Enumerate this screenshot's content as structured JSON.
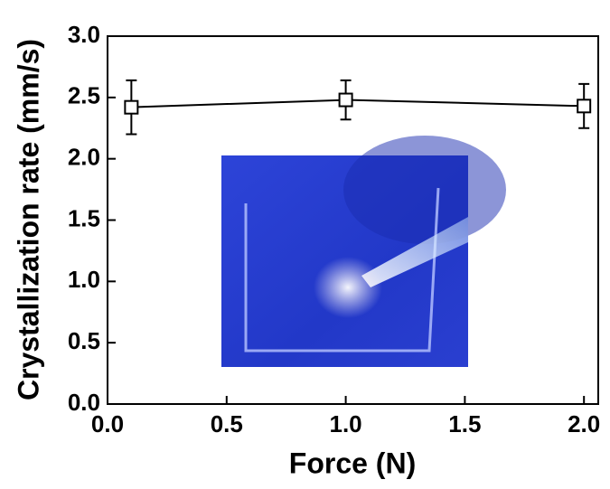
{
  "chart_data": {
    "type": "line",
    "x_label": "Force (N)",
    "y_label": "Crystallization rate (mm/s)",
    "x": [
      0.1,
      1.0,
      2.0
    ],
    "series": [
      {
        "color": "#000000",
        "values": [
          2.42,
          2.48,
          2.43
        ],
        "errors": [
          0.22,
          0.16,
          0.18
        ]
      }
    ],
    "xlim": [
      0,
      2.06
    ],
    "ylim": [
      0,
      3.0
    ],
    "xticks": [
      {
        "value": 0,
        "label": "0.0"
      },
      {
        "value": 0.5,
        "label": "0.5"
      },
      {
        "value": 1.0,
        "label": "1.0"
      },
      {
        "value": 1.5,
        "label": "1.5"
      },
      {
        "value": 2.0,
        "label": "2.0"
      }
    ],
    "yticks": [
      {
        "value": 0,
        "label": "0.0"
      },
      {
        "value": 0.5,
        "label": "0.5"
      },
      {
        "value": 1.0,
        "label": "1.0"
      },
      {
        "value": 1.5,
        "label": "1.5"
      },
      {
        "value": 2.0,
        "label": "2.0"
      },
      {
        "value": 2.5,
        "label": "2.5"
      },
      {
        "value": 3.0,
        "label": "3.0"
      }
    ],
    "marker": "open-square"
  }
}
